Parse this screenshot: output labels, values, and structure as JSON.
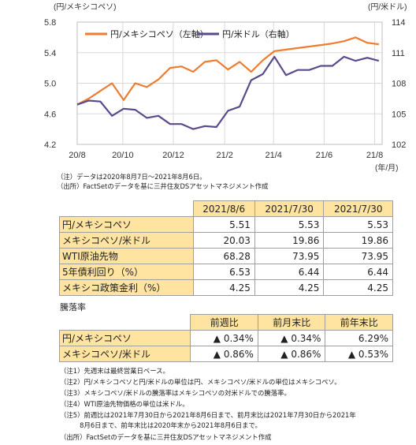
{
  "chart_data": {
    "type": "line",
    "left_axis_unit": "(円/メキシコペソ)",
    "right_axis_unit": "(円/米ドル)",
    "x_unit": "(年/月)",
    "x_ticks": [
      "20/8",
      "20/10",
      "20/12",
      "21/2",
      "21/4",
      "21/6",
      "21/8"
    ],
    "y_left_ticks": [
      "5.8",
      "5.4",
      "5.0",
      "4.6",
      "4.2"
    ],
    "y_right_ticks": [
      "114",
      "111",
      "108",
      "105",
      "102"
    ],
    "ylim_left": [
      4.2,
      5.8
    ],
    "ylim_right": [
      102,
      114
    ],
    "grid": true,
    "legend_position": "top",
    "series": [
      {
        "name": "円/メキシコペソ（左軸）",
        "axis": "left",
        "color": "#ed7d31",
        "x": [
          "2020-08-07",
          "2020-08-21",
          "2020-09-04",
          "2020-09-18",
          "2020-10-02",
          "2020-10-16",
          "2020-10-30",
          "2020-11-13",
          "2020-11-27",
          "2020-12-11",
          "2020-12-25",
          "2021-01-08",
          "2021-01-22",
          "2021-02-05",
          "2021-02-19",
          "2021-03-05",
          "2021-03-19",
          "2021-04-02",
          "2021-04-16",
          "2021-04-30",
          "2021-05-14",
          "2021-05-28",
          "2021-06-11",
          "2021-06-25",
          "2021-07-09",
          "2021-07-23",
          "2021-08-06"
        ],
        "values": [
          4.72,
          4.8,
          4.9,
          5.0,
          4.78,
          5.0,
          4.95,
          5.05,
          5.2,
          5.22,
          5.15,
          5.28,
          5.3,
          5.18,
          5.28,
          5.15,
          5.3,
          5.42,
          5.44,
          5.46,
          5.48,
          5.5,
          5.52,
          5.55,
          5.6,
          5.53,
          5.51
        ]
      },
      {
        "name": "円/米ドル（右軸）",
        "axis": "right",
        "color": "#5b4a8b",
        "x": [
          "2020-08-07",
          "2020-08-21",
          "2020-09-04",
          "2020-09-18",
          "2020-10-02",
          "2020-10-16",
          "2020-10-30",
          "2020-11-13",
          "2020-11-27",
          "2020-12-11",
          "2020-12-25",
          "2021-01-08",
          "2021-01-22",
          "2021-02-05",
          "2021-02-19",
          "2021-03-05",
          "2021-03-19",
          "2021-04-02",
          "2021-04-16",
          "2021-04-30",
          "2021-05-14",
          "2021-05-28",
          "2021-06-11",
          "2021-06-25",
          "2021-07-09",
          "2021-07-23",
          "2021-08-06"
        ],
        "values": [
          105.9,
          106.3,
          106.2,
          104.8,
          105.5,
          105.4,
          104.6,
          104.8,
          104.0,
          104.0,
          103.5,
          103.8,
          103.7,
          105.3,
          105.7,
          108.3,
          108.9,
          110.6,
          108.8,
          109.3,
          109.3,
          109.7,
          109.7,
          110.6,
          110.2,
          110.5,
          110.2
        ]
      }
    ]
  },
  "notes_top": [
    "（注）データは2020年8月7日～2021年8月6日。",
    "（出所）FactSetのデータを基に三井住友DSアセットマネジメント作成"
  ],
  "table1": {
    "headers": [
      "2021/8/6",
      "2021/7/30",
      "2021/7/30"
    ],
    "rows": [
      {
        "label": "円/メキシコペソ",
        "values": [
          "5.51",
          "5.53",
          "5.53"
        ]
      },
      {
        "label": "メキシコペソ/米ドル",
        "values": [
          "20.03",
          "19.86",
          "19.86"
        ]
      },
      {
        "label": "WTI原油先物",
        "values": [
          "68.28",
          "73.95",
          "73.95"
        ]
      },
      {
        "label": "5年債利回り（%）",
        "values": [
          "6.53",
          "6.44",
          "6.44"
        ]
      },
      {
        "label": "メキシコ政策金利（%）",
        "values": [
          "4.25",
          "4.25",
          "4.25"
        ]
      }
    ]
  },
  "table2": {
    "caption": "騰落率",
    "headers": [
      "前週比",
      "前月末比",
      "前年末比"
    ],
    "rows": [
      {
        "label": "円/メキシコペソ",
        "values": [
          "▲ 0.34%",
          "▲ 0.34%",
          "6.29%"
        ]
      },
      {
        "label": "メキシコペソ/米ドル",
        "values": [
          "▲ 0.86%",
          "▲ 0.86%",
          "▲ 0.53%"
        ]
      }
    ]
  },
  "notes_bottom": [
    "（注1）先週末は最終営業日ベース。",
    "（注2）円/メキシコペソと円/米ドルの単位は円、メキシコペソ/米ドルの単位はメキシコペソ。",
    "（注3）メキシコペソ/米ドルの騰落率はメキシコペソの対米ドルでの騰落率。",
    "（注4）WTI原油先物価格の単位は米ドル。",
    "（注5）前週比は2021年7月30日から2021年8月6日まで、前月末比は2021年7月30日から2021年",
    "　　　8月6日まで、前年末比は2020年末から2021年8月6日まで。",
    "（出所）FactSetのデータを基に三井住友DSアセットマネジメント作成"
  ]
}
